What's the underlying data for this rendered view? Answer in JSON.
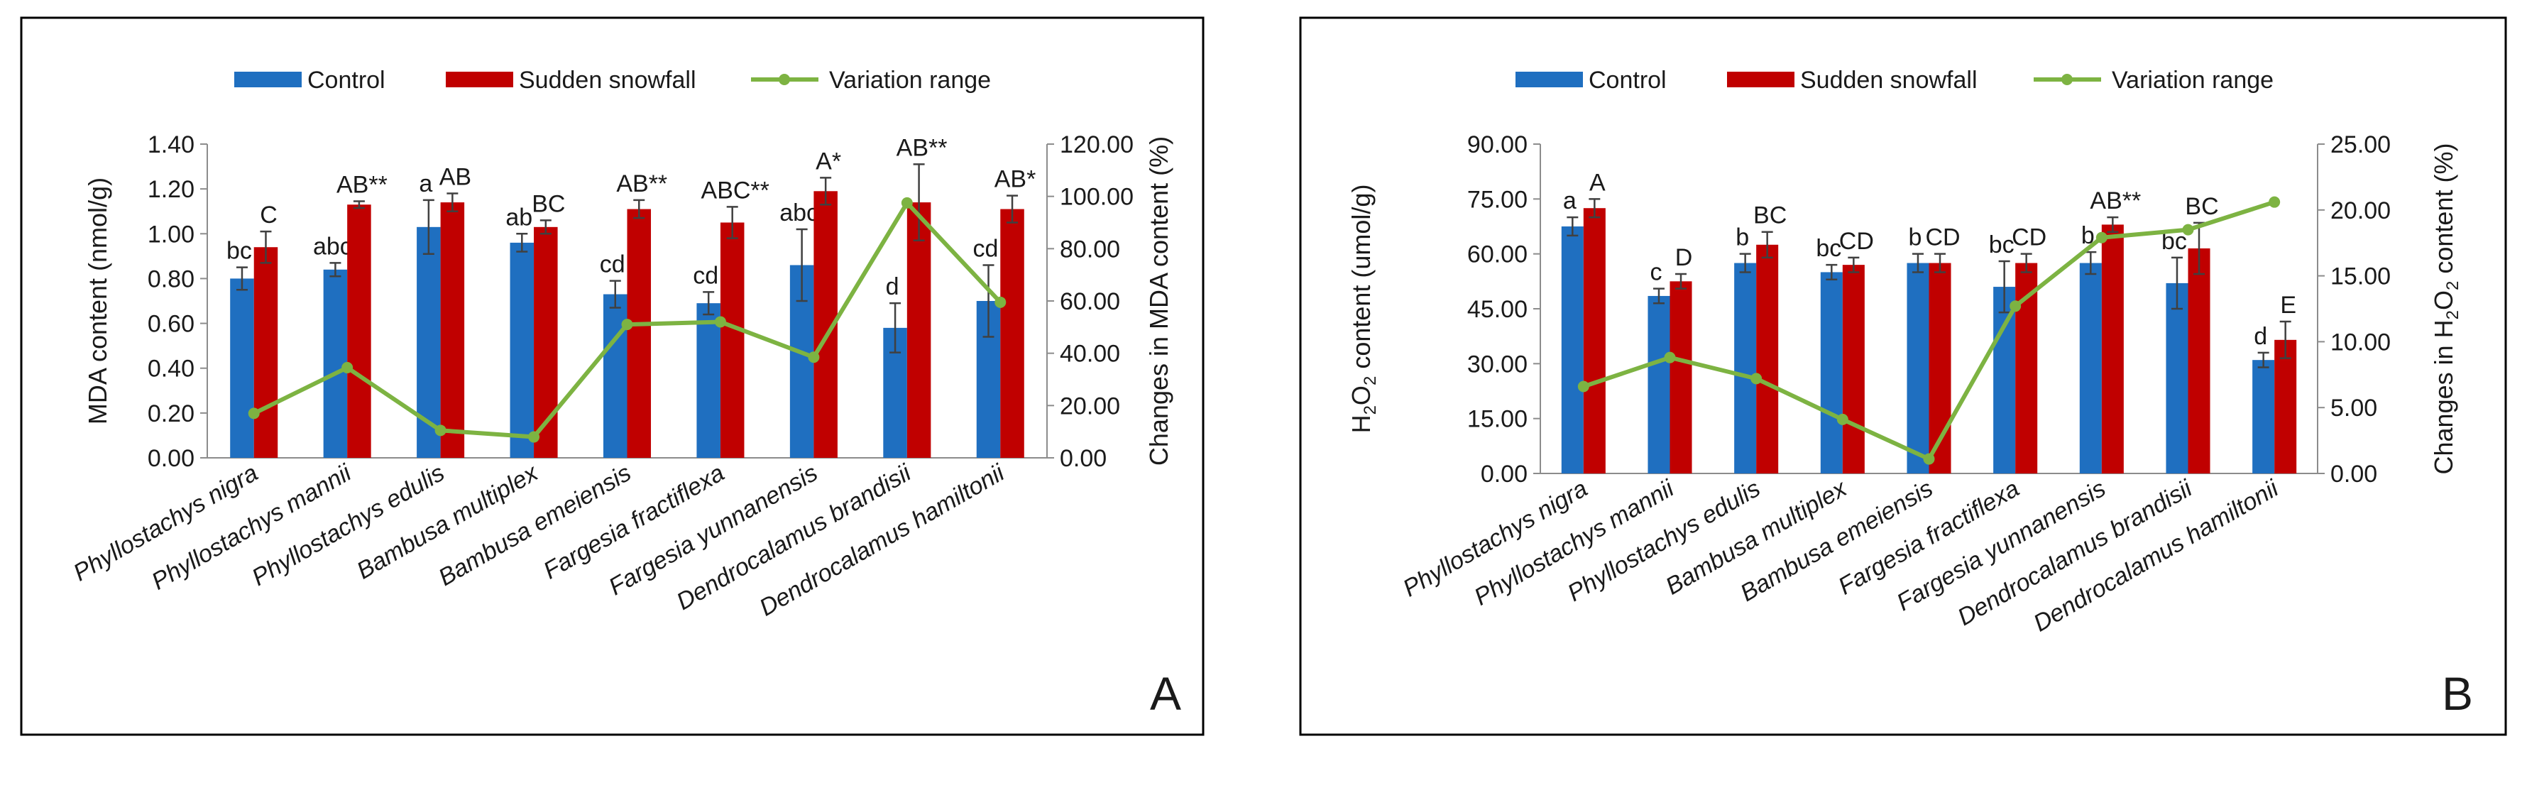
{
  "colors": {
    "control": "#1F6FC0",
    "snow": "#C00000",
    "variation": "#7DB342",
    "axis": "#8C8C8C",
    "text": "#1A1A1A"
  },
  "legend": {
    "control": "Control",
    "snow": "Sudden snowfall",
    "variation": "Variation range"
  },
  "chart_data": [
    {
      "type": "bar",
      "panel_label": "A",
      "categories": [
        "Phyllostachys nigra",
        "Phyllostachys mannii",
        "Phyllostachys edulis",
        "Bambusa multiplex",
        "Bambusa  emeiensis",
        "Fargesia fractiflexa",
        "Fargesia yunnanensis",
        "Dendrocalamus brandisii",
        "Dendrocalamus hamiltonii"
      ],
      "ylabel": "MDA content (nmol/g)",
      "y2label": "Changes in MDA content (%)",
      "ylim": [
        0,
        1.4
      ],
      "ytick_values": [
        0,
        0.2,
        0.4,
        0.6,
        0.8,
        1.0,
        1.2,
        1.4
      ],
      "ytick_labels": [
        "0.00",
        "0.20",
        "0.40",
        "0.60",
        "0.80",
        "1.00",
        "1.20",
        "1.40"
      ],
      "y2lim": [
        0,
        120
      ],
      "y2tick_values": [
        0,
        20,
        40,
        60,
        80,
        100,
        120
      ],
      "y2tick_labels": [
        "0.00",
        "20.00",
        "40.00",
        "60.00",
        "80.00",
        "100.00",
        "120.00"
      ],
      "series": [
        {
          "name": "Control",
          "values": [
            0.8,
            0.84,
            1.03,
            0.96,
            0.73,
            0.69,
            0.86,
            0.58,
            0.7
          ],
          "errors": [
            0.05,
            0.03,
            0.12,
            0.04,
            0.06,
            0.05,
            0.16,
            0.11,
            0.16
          ],
          "labels": [
            "bc",
            "abc",
            "a",
            "ab",
            "cd",
            "cd",
            "abc",
            "d",
            "cd"
          ]
        },
        {
          "name": "Sudden snowfall",
          "values": [
            0.94,
            1.13,
            1.14,
            1.03,
            1.11,
            1.05,
            1.19,
            1.14,
            1.11
          ],
          "errors": [
            0.07,
            0.015,
            0.04,
            0.03,
            0.04,
            0.07,
            0.06,
            0.17,
            0.06
          ],
          "labels": [
            "C",
            "AB**",
            "AB",
            "BC",
            "AB**",
            "ABC**",
            "A*",
            "AB**",
            "AB*"
          ]
        },
        {
          "name": "Variation range",
          "axis": "secondary",
          "values": [
            17,
            34.5,
            10.5,
            8,
            51,
            52,
            38.5,
            97.5,
            59.5
          ]
        }
      ]
    },
    {
      "type": "bar",
      "panel_label": "B",
      "categories": [
        "Phyllostachys nigra",
        "Phyllostachys mannii",
        "Phyllostachys edulis",
        "Bambusa multiplex",
        "Bambusa  emeiensis",
        "Fargesia fractiflexa",
        "Fargesia yunnanensis",
        "Dendrocalamus brandisii",
        "Dendrocalamus hamiltonii"
      ],
      "ylabel_prefix": "H",
      "ylabel_sub": "2",
      "ylabel_mid": "O",
      "ylabel_sub2": "2",
      "ylabel_suffix": "  content (umol/g)",
      "y2label_prefix": "Changes in H",
      "y2label_sub": "2",
      "y2label_mid": "O",
      "y2label_sub2": "2",
      "y2label_suffix": " content (%)",
      "ylim": [
        0,
        90
      ],
      "ytick_values": [
        0,
        15,
        30,
        45,
        60,
        75,
        90
      ],
      "ytick_labels": [
        "0.00",
        "15.00",
        "30.00",
        "45.00",
        "60.00",
        "75.00",
        "90.00"
      ],
      "y2lim": [
        0,
        25
      ],
      "y2tick_values": [
        0,
        5,
        10,
        15,
        20,
        25
      ],
      "y2tick_labels": [
        "0.00",
        "5.00",
        "10.00",
        "15.00",
        "20.00",
        "25.00"
      ],
      "series": [
        {
          "name": "Control",
          "values": [
            67.5,
            48.5,
            57.5,
            55,
            57.5,
            51,
            57.5,
            52,
            31
          ],
          "errors": [
            2.5,
            2,
            2.5,
            2,
            2.5,
            7,
            3,
            7,
            2
          ],
          "labels": [
            "a",
            "c",
            "b",
            "bc",
            "b",
            "bc",
            "b",
            "bc",
            "d"
          ]
        },
        {
          "name": "Sudden snowfall",
          "values": [
            72.5,
            52.5,
            62.5,
            57,
            57.5,
            57.5,
            68,
            61.5,
            36.5
          ],
          "errors": [
            2.5,
            2,
            3.5,
            2,
            2.5,
            2.5,
            2,
            7,
            5
          ],
          "labels": [
            "A",
            "D",
            "BC",
            "CD",
            "CD",
            "CD",
            "AB**",
            "BC",
            "E"
          ]
        },
        {
          "name": "Variation range",
          "axis": "secondary",
          "values": [
            6.6,
            8.8,
            7.2,
            4.1,
            1.1,
            12.7,
            17.9,
            18.5,
            20.6
          ]
        }
      ]
    }
  ]
}
